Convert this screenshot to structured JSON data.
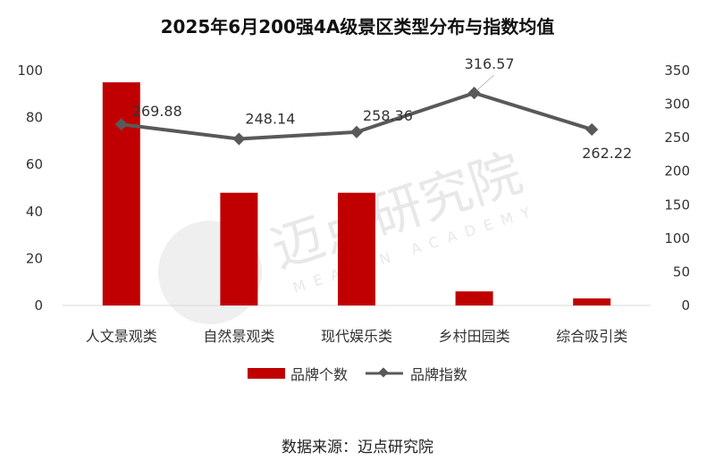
{
  "chart_data": {
    "type": "bar",
    "title": "2025年6月200强4A级景区类型分布与指数均值",
    "categories": [
      "人文景观类",
      "自然景观类",
      "现代娱乐类",
      "乡村田园类",
      "综合吸引类"
    ],
    "series": [
      {
        "name": "品牌个数",
        "type": "bar",
        "axis": "left",
        "color": "#c00000",
        "values": [
          95,
          48,
          48,
          6,
          3
        ]
      },
      {
        "name": "品牌指数",
        "type": "line",
        "axis": "right",
        "color": "#595959",
        "values": [
          269.88,
          248.14,
          258.36,
          316.57,
          262.22
        ]
      }
    ],
    "data_labels": [
      "269.88",
      "248.14",
      "258.36",
      "316.57",
      "262.22"
    ],
    "y_left": {
      "ylim": [
        0,
        100
      ],
      "ticks": [
        "0",
        "20",
        "40",
        "60",
        "80",
        "100"
      ]
    },
    "y_right": {
      "ylim": [
        0,
        350
      ],
      "ticks": [
        "0",
        "50",
        "100",
        "150",
        "200",
        "250",
        "300",
        "350"
      ]
    },
    "legend_position": "bottom",
    "grid": false
  },
  "source": "数据来源：迈点研究院",
  "watermark": {
    "cn": "迈点研究院",
    "en": "MEADIN ACADEMY"
  }
}
